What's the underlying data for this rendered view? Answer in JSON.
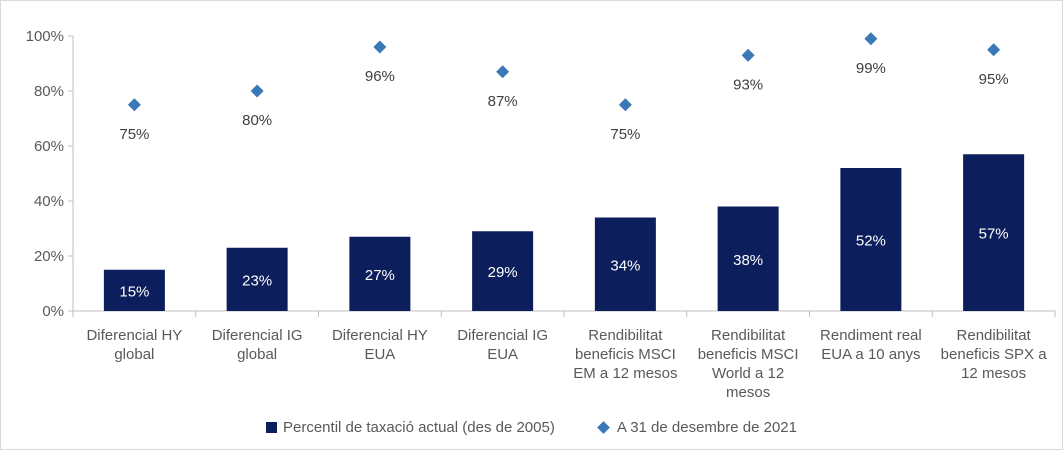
{
  "chart_data": {
    "type": "bar",
    "categories": [
      [
        "Diferencial HY",
        "global"
      ],
      [
        "Diferencial IG",
        "global"
      ],
      [
        "Diferencial HY",
        "EUA"
      ],
      [
        "Diferencial IG",
        "EUA"
      ],
      [
        "Rendibilitat",
        "beneficis MSCI",
        "EM a 12 mesos"
      ],
      [
        "Rendibilitat",
        "beneficis MSCI",
        "World a 12",
        "mesos"
      ],
      [
        "Rendiment real",
        "EUA a 10 anys"
      ],
      [
        "Rendibilitat",
        "beneficis SPX a",
        "12 mesos"
      ]
    ],
    "series": [
      {
        "name": "Percentil de taxació actual (des de 2005)",
        "type": "bar",
        "color": "#0c1f5c",
        "values": [
          15,
          23,
          27,
          29,
          34,
          38,
          52,
          57
        ],
        "labels": [
          "15%",
          "23%",
          "27%",
          "29%",
          "34%",
          "38%",
          "52%",
          "57%"
        ]
      },
      {
        "name": "A 31 de desembre de 2021",
        "type": "scatter",
        "marker": "diamond",
        "color": "#3a78b8",
        "values": [
          75,
          80,
          96,
          87,
          75,
          93,
          99,
          95
        ],
        "labels": [
          "75%",
          "80%",
          "96%",
          "87%",
          "75%",
          "93%",
          "99%",
          "95%"
        ]
      }
    ],
    "ylim": [
      0,
      100
    ],
    "yticks": [
      0,
      20,
      40,
      60,
      80,
      100
    ],
    "ytick_labels": [
      "0%",
      "20%",
      "40%",
      "60%",
      "80%",
      "100%"
    ],
    "title": "",
    "xlabel": "",
    "ylabel": "",
    "grid": false,
    "legend": "bottom"
  }
}
